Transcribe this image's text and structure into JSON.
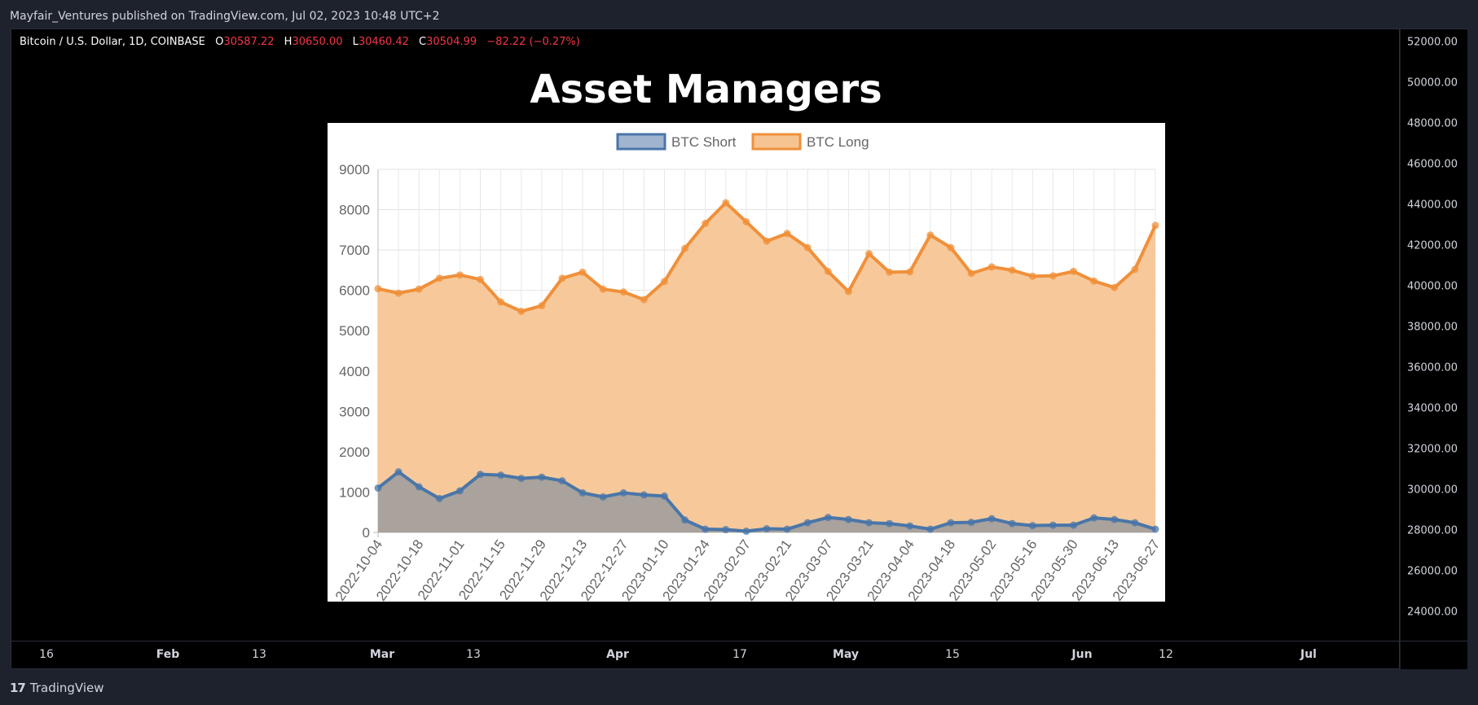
{
  "header": {
    "published_text": "Mayfair_Ventures published on TradingView.com, Jul 02, 2023 10:48 UTC+2"
  },
  "symbol_line": {
    "symbol": "Bitcoin / U.S. Dollar, 1D, COINBASE",
    "o_key": "O",
    "o_val": "30587.22",
    "h_key": "H",
    "h_val": "30650.00",
    "l_key": "L",
    "l_val": "30460.42",
    "c_key": "C",
    "c_val": "30504.99",
    "change": "−82.22 (−0.27%)"
  },
  "overlay_title": "Asset Managers",
  "price_scale": [
    "52000.00",
    "50000.00",
    "48000.00",
    "46000.00",
    "44000.00",
    "42000.00",
    "40000.00",
    "38000.00",
    "36000.00",
    "34000.00",
    "32000.00",
    "30000.00",
    "28000.00",
    "26000.00",
    "24000.00"
  ],
  "time_scale": [
    {
      "label": "16",
      "bold": false
    },
    {
      "label": "Feb",
      "bold": true
    },
    {
      "label": "13",
      "bold": false
    },
    {
      "label": "Mar",
      "bold": true
    },
    {
      "label": "13",
      "bold": false
    },
    {
      "label": "Apr",
      "bold": true
    },
    {
      "label": "17",
      "bold": false
    },
    {
      "label": "May",
      "bold": true
    },
    {
      "label": "15",
      "bold": false
    },
    {
      "label": "Jun",
      "bold": true
    },
    {
      "label": "12",
      "bold": false
    },
    {
      "label": "Jul",
      "bold": true
    }
  ],
  "footer": {
    "logo": "17",
    "brand": "TradingView"
  },
  "colors": {
    "short_line": "#4a76a8",
    "short_fill": "#a29e9d",
    "long_line": "#f0903a",
    "long_fill": "#f6c491"
  },
  "chart_data": {
    "type": "area",
    "title": "",
    "x": [
      "2022-10-04",
      "2022-10-11",
      "2022-10-18",
      "2022-10-25",
      "2022-11-01",
      "2022-11-08",
      "2022-11-15",
      "2022-11-22",
      "2022-11-29",
      "2022-12-06",
      "2022-12-13",
      "2022-12-20",
      "2022-12-27",
      "2023-01-03",
      "2023-01-10",
      "2023-01-17",
      "2023-01-24",
      "2023-01-31",
      "2023-02-07",
      "2023-02-14",
      "2023-02-21",
      "2023-02-28",
      "2023-03-07",
      "2023-03-14",
      "2023-03-21",
      "2023-03-28",
      "2023-04-04",
      "2023-04-11",
      "2023-04-18",
      "2023-04-25",
      "2023-05-02",
      "2023-05-09",
      "2023-05-16",
      "2023-05-23",
      "2023-05-30",
      "2023-06-06",
      "2023-06-13",
      "2023-06-20",
      "2023-06-27"
    ],
    "x_tick_labels": [
      "2022-10-04",
      "2022-10-18",
      "2022-11-01",
      "2022-11-15",
      "2022-11-29",
      "2022-12-13",
      "2022-12-27",
      "2023-01-10",
      "2023-01-24",
      "2023-02-07",
      "2023-02-21",
      "2023-03-07",
      "2023-03-21",
      "2023-04-04",
      "2023-04-18",
      "2023-05-02",
      "2023-05-16",
      "2023-05-30",
      "2023-06-13",
      "2023-06-27"
    ],
    "ylim": [
      0,
      9000
    ],
    "y_ticks": [
      0,
      1000,
      2000,
      3000,
      4000,
      5000,
      6000,
      7000,
      8000,
      9000
    ],
    "legend_position": "top",
    "grid": true,
    "series": [
      {
        "name": "BTC Short",
        "values": [
          1100,
          1500,
          1130,
          840,
          1030,
          1440,
          1420,
          1340,
          1370,
          1280,
          980,
          880,
          980,
          930,
          900,
          310,
          80,
          70,
          30,
          90,
          80,
          240,
          370,
          320,
          240,
          220,
          160,
          80,
          240,
          250,
          340,
          220,
          170,
          180,
          180,
          360,
          320,
          240,
          80
        ]
      },
      {
        "name": "BTC Long",
        "values": [
          6040,
          5930,
          6030,
          6300,
          6380,
          6270,
          5710,
          5480,
          5620,
          6300,
          6450,
          6030,
          5960,
          5770,
          6220,
          7040,
          7660,
          8170,
          7700,
          7220,
          7410,
          7060,
          6470,
          5970,
          6910,
          6450,
          6460,
          7370,
          7060,
          6420,
          6580,
          6500,
          6350,
          6360,
          6470,
          6230,
          6070,
          6520,
          7610
        ]
      }
    ]
  }
}
